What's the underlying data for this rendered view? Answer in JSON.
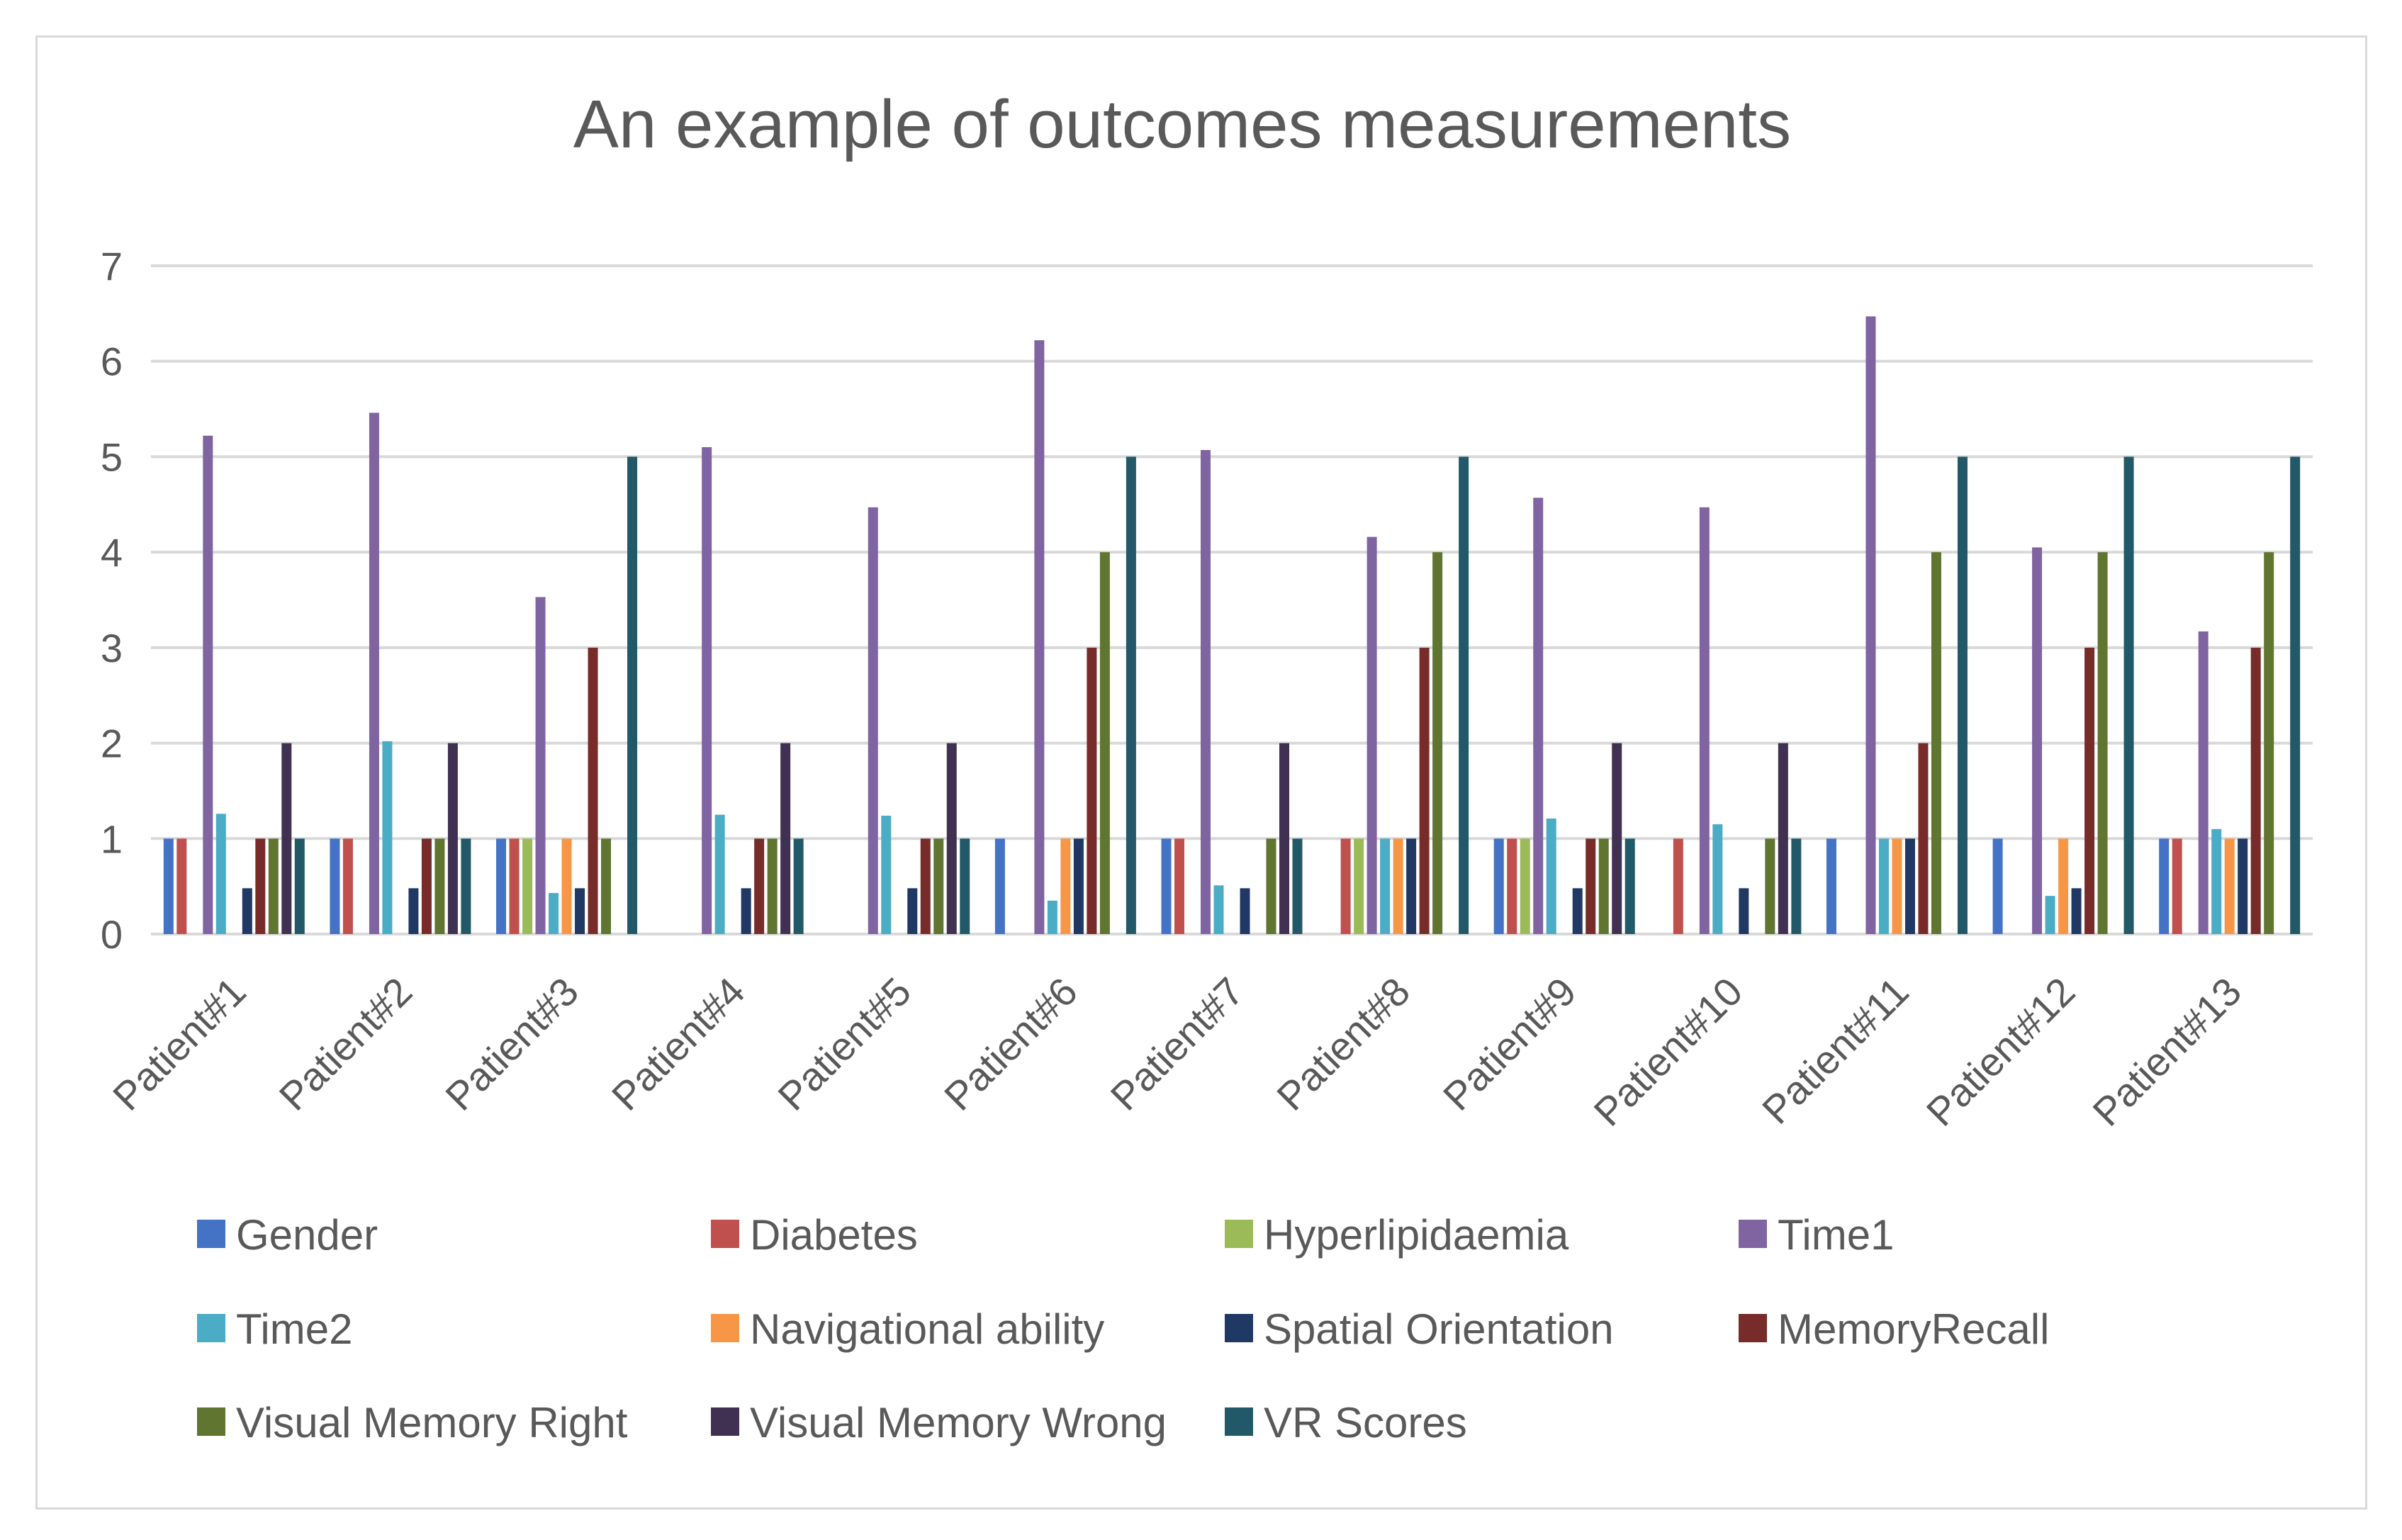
{
  "chart_data": {
    "type": "bar",
    "title": "An example of outcomes measurements",
    "xlabel": "",
    "ylabel": "",
    "ylim": [
      0,
      7
    ],
    "yticks": [
      0,
      1,
      2,
      3,
      4,
      5,
      6,
      7
    ],
    "grid": true,
    "legend_position": "bottom",
    "categories": [
      "Patient#1",
      "Patient#2",
      "Patient#3",
      "Patient#4",
      "Patient#5",
      "Patient#6",
      "Patient#7",
      "Patient#8",
      "Patient#9",
      "Patient#10",
      "Patient#11",
      "Patient#12",
      "Patient#13"
    ],
    "series": [
      {
        "name": "Gender",
        "color": "#4472c4",
        "values": [
          1,
          1,
          1,
          0,
          0,
          1,
          1,
          0,
          1,
          0,
          1,
          1,
          1
        ]
      },
      {
        "name": "Diabetes",
        "color": "#c0504d",
        "values": [
          1,
          1,
          1,
          0,
          0,
          0,
          1,
          1,
          1,
          1,
          0,
          0,
          1
        ]
      },
      {
        "name": "Hyperlipidaemia",
        "color": "#9bbb59",
        "values": [
          0,
          0,
          1,
          0,
          0,
          0,
          0,
          1,
          1,
          0,
          0,
          0,
          0
        ]
      },
      {
        "name": "Time1",
        "color": "#8064a2",
        "values": [
          5.22,
          5.46,
          3.53,
          5.1,
          4.47,
          6.22,
          5.07,
          4.16,
          4.57,
          4.47,
          6.47,
          4.05,
          3.17
        ]
      },
      {
        "name": "Time2",
        "color": "#4bacc6",
        "values": [
          1.26,
          2.02,
          0.43,
          1.25,
          1.24,
          0.35,
          0.51,
          1.0,
          1.21,
          1.15,
          1.0,
          0.4,
          1.1
        ]
      },
      {
        "name": "Navigational ability",
        "color": "#f79646",
        "values": [
          0,
          0,
          1,
          0,
          0,
          1,
          0,
          1,
          0,
          0,
          1,
          1,
          1
        ]
      },
      {
        "name": "Spatial Orientation",
        "color": "#1f3864",
        "values": [
          0.48,
          0.48,
          0.48,
          0.48,
          0.48,
          1,
          0.48,
          1,
          0.48,
          0.48,
          1,
          0.48,
          1
        ]
      },
      {
        "name": "MemoryRecall",
        "color": "#772c2a",
        "values": [
          1,
          1,
          3,
          1,
          1,
          3,
          0,
          3,
          1,
          0,
          2,
          3,
          3
        ]
      },
      {
        "name": "Visual Memory Right",
        "color": "#5f7530",
        "values": [
          1,
          1,
          1,
          1,
          1,
          4,
          1,
          4,
          1,
          1,
          4,
          4,
          4
        ]
      },
      {
        "name": "Visual Memory Wrong",
        "color": "#403152",
        "values": [
          2,
          2,
          0,
          2,
          2,
          0,
          2,
          0,
          2,
          2,
          0,
          0,
          0
        ]
      },
      {
        "name": "VR Scores",
        "color": "#215968",
        "values": [
          1,
          1,
          5,
          1,
          1,
          5,
          1,
          5,
          1,
          1,
          5,
          5,
          5
        ]
      }
    ]
  }
}
